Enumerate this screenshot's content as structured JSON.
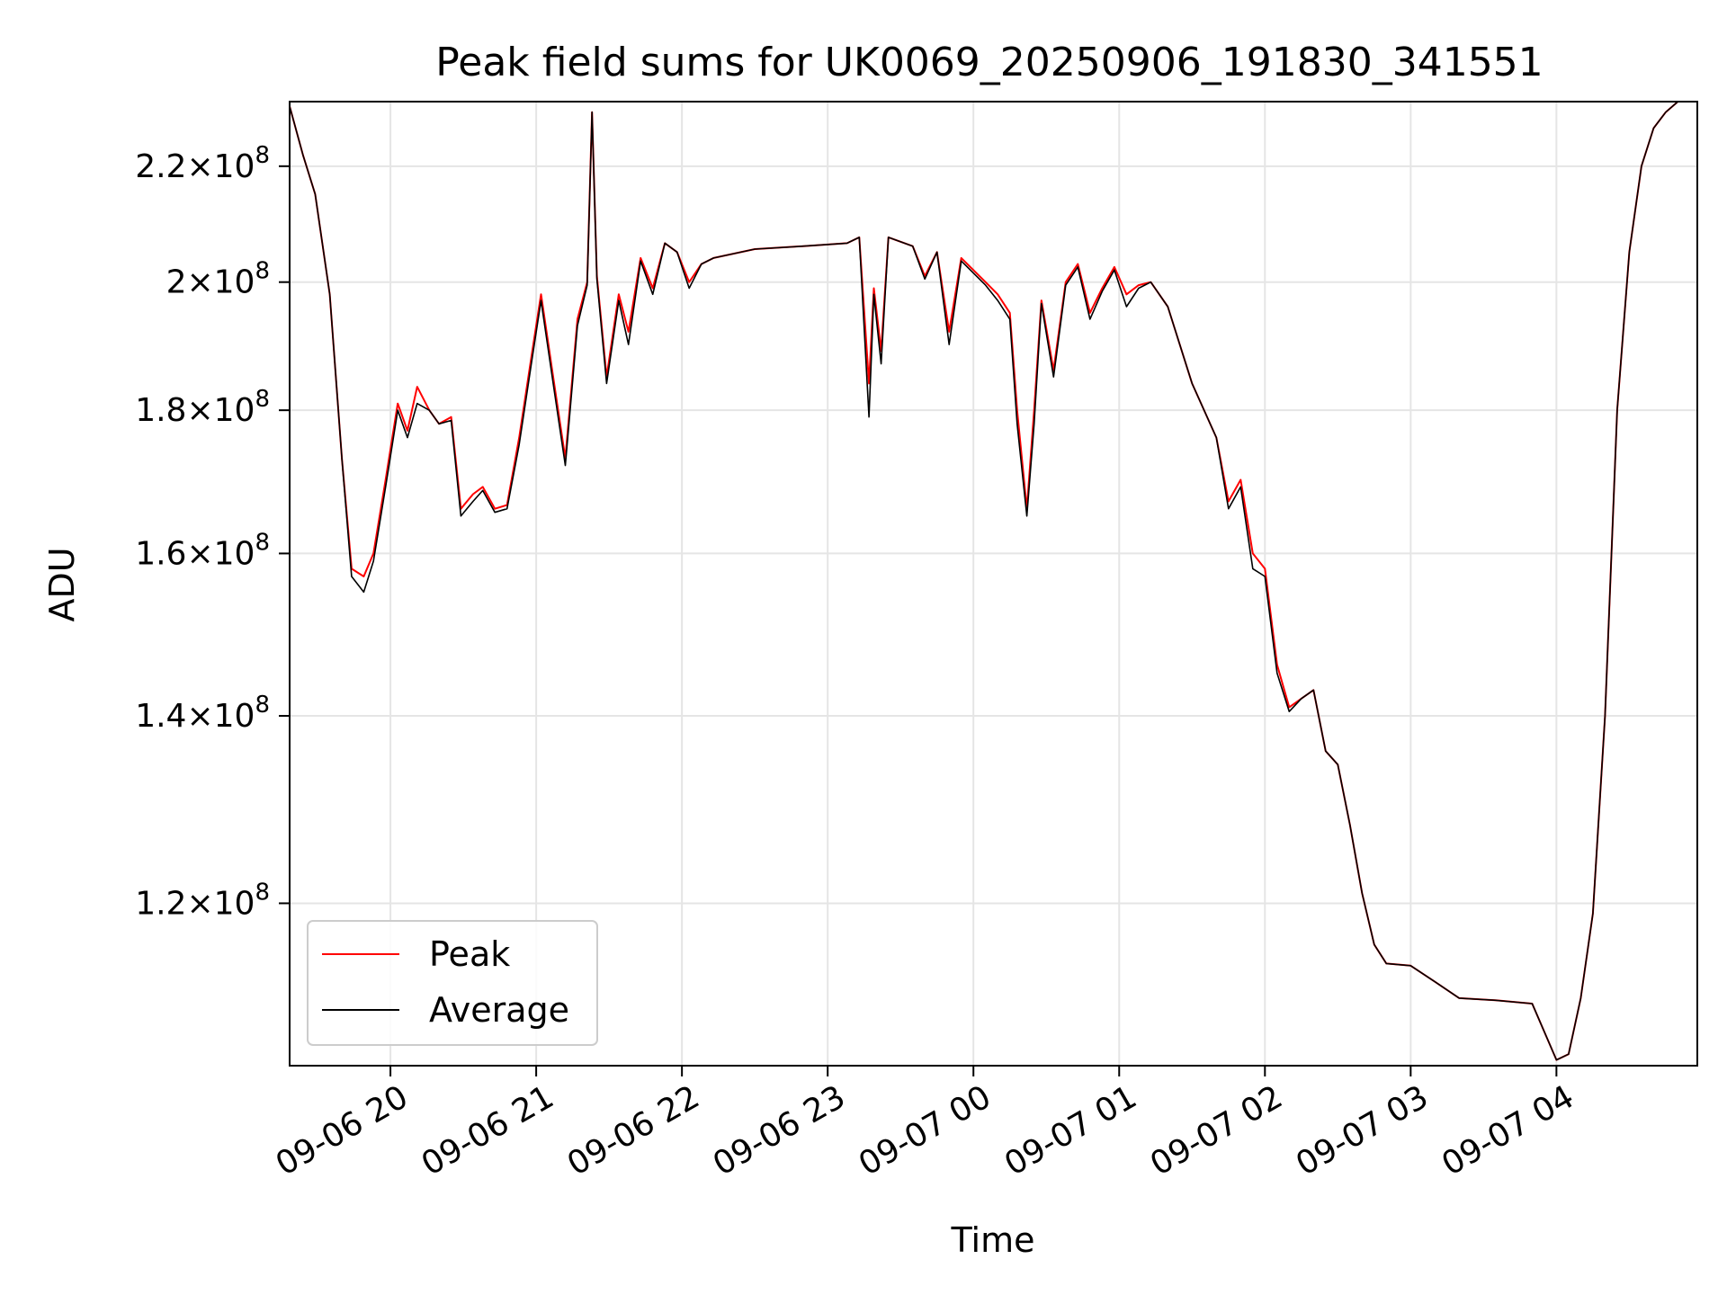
{
  "chart_data": {
    "type": "line",
    "title": "Peak field sums for UK0069_20250906_191830_341551",
    "xlabel": "Time",
    "ylabel": "ADU",
    "y_scale": "log",
    "ylim": [
      105000000,
      232000000
    ],
    "xlim": [
      "2025-09-06 19:18:30",
      "2025-09-07 04:58:00"
    ],
    "grid": true,
    "legend_position": "lower left",
    "x_ticks": [
      "09-06 20",
      "09-06 21",
      "09-06 22",
      "09-06 23",
      "09-07 00",
      "09-07 01",
      "09-07 02",
      "09-07 03",
      "09-07 04"
    ],
    "x_tick_times": [
      "2025-09-06 20:00",
      "2025-09-06 21:00",
      "2025-09-06 22:00",
      "2025-09-06 23:00",
      "2025-09-07 00:00",
      "2025-09-07 01:00",
      "2025-09-07 02:00",
      "2025-09-07 03:00",
      "2025-09-07 04:00"
    ],
    "y_ticks": [
      {
        "value": 120000000,
        "mantissa": "1.2",
        "exponent": "8"
      },
      {
        "value": 140000000,
        "mantissa": "1.4",
        "exponent": "8"
      },
      {
        "value": 160000000,
        "mantissa": "1.6",
        "exponent": "8"
      },
      {
        "value": 180000000,
        "mantissa": "1.8",
        "exponent": "8"
      },
      {
        "value": 200000000,
        "mantissa": "2",
        "exponent": "8"
      },
      {
        "value": 220000000,
        "mantissa": "2.2",
        "exponent": "8"
      }
    ],
    "series": [
      {
        "name": "Peak",
        "color": "#ff0000",
        "points": [
          [
            "2025-09-06 19:18",
            232000000
          ],
          [
            "2025-09-06 19:24",
            222000000
          ],
          [
            "2025-09-06 19:29",
            215000000
          ],
          [
            "2025-09-06 19:35",
            198000000
          ],
          [
            "2025-09-06 19:40",
            173000000
          ],
          [
            "2025-09-06 19:44",
            158000000
          ],
          [
            "2025-09-06 19:49",
            157000000
          ],
          [
            "2025-09-06 19:53",
            160000000
          ],
          [
            "2025-09-06 19:58",
            170000000
          ],
          [
            "2025-09-06 20:03",
            181000000
          ],
          [
            "2025-09-06 20:07",
            177000000
          ],
          [
            "2025-09-06 20:11",
            183500000
          ],
          [
            "2025-09-06 20:16",
            180000000
          ],
          [
            "2025-09-06 20:20",
            178000000
          ],
          [
            "2025-09-06 20:25",
            179000000
          ],
          [
            "2025-09-06 20:29",
            166000000
          ],
          [
            "2025-09-06 20:34",
            168000000
          ],
          [
            "2025-09-06 20:38",
            169000000
          ],
          [
            "2025-09-06 20:43",
            166000000
          ],
          [
            "2025-09-06 20:48",
            166500000
          ],
          [
            "2025-09-06 20:53",
            176000000
          ],
          [
            "2025-09-06 20:58",
            188000000
          ],
          [
            "2025-09-06 21:02",
            198000000
          ],
          [
            "2025-09-06 21:07",
            185000000
          ],
          [
            "2025-09-06 21:12",
            173000000
          ],
          [
            "2025-09-06 21:17",
            194000000
          ],
          [
            "2025-09-06 21:21",
            200000000
          ],
          [
            "2025-09-06 21:23",
            230000000
          ],
          [
            "2025-09-06 21:25",
            201000000
          ],
          [
            "2025-09-06 21:29",
            185000000
          ],
          [
            "2025-09-06 21:34",
            198000000
          ],
          [
            "2025-09-06 21:38",
            192000000
          ],
          [
            "2025-09-06 21:43",
            204000000
          ],
          [
            "2025-09-06 21:48",
            199000000
          ],
          [
            "2025-09-06 21:53",
            206500000
          ],
          [
            "2025-09-06 21:58",
            205000000
          ],
          [
            "2025-09-06 22:03",
            200000000
          ],
          [
            "2025-09-06 22:08",
            203000000
          ],
          [
            "2025-09-06 22:13",
            204000000
          ],
          [
            "2025-09-06 22:30",
            205500000
          ],
          [
            "2025-09-06 22:50",
            206000000
          ],
          [
            "2025-09-06 23:08",
            206500000
          ],
          [
            "2025-09-06 23:13",
            207500000
          ],
          [
            "2025-09-06 23:17",
            184000000
          ],
          [
            "2025-09-06 23:19",
            199000000
          ],
          [
            "2025-09-06 23:22",
            189000000
          ],
          [
            "2025-09-06 23:25",
            207500000
          ],
          [
            "2025-09-06 23:35",
            206000000
          ],
          [
            "2025-09-06 23:40",
            201000000
          ],
          [
            "2025-09-06 23:45",
            205000000
          ],
          [
            "2025-09-06 23:50",
            192000000
          ],
          [
            "2025-09-06 23:55",
            204000000
          ],
          [
            "2025-09-07 00:05",
            200000000
          ],
          [
            "2025-09-07 00:10",
            198000000
          ],
          [
            "2025-09-07 00:15",
            195000000
          ],
          [
            "2025-09-07 00:18",
            180000000
          ],
          [
            "2025-09-07 00:22",
            166000000
          ],
          [
            "2025-09-07 00:25",
            180000000
          ],
          [
            "2025-09-07 00:28",
            197000000
          ],
          [
            "2025-09-07 00:33",
            186000000
          ],
          [
            "2025-09-07 00:38",
            200000000
          ],
          [
            "2025-09-07 00:43",
            203000000
          ],
          [
            "2025-09-07 00:48",
            195000000
          ],
          [
            "2025-09-07 00:53",
            199000000
          ],
          [
            "2025-09-07 00:58",
            202500000
          ],
          [
            "2025-09-07 01:03",
            198000000
          ],
          [
            "2025-09-07 01:08",
            199500000
          ],
          [
            "2025-09-07 01:13",
            200000000
          ],
          [
            "2025-09-07 01:20",
            196000000
          ],
          [
            "2025-09-07 01:30",
            184000000
          ],
          [
            "2025-09-07 01:40",
            176000000
          ],
          [
            "2025-09-07 01:45",
            167000000
          ],
          [
            "2025-09-07 01:50",
            170000000
          ],
          [
            "2025-09-07 01:55",
            160000000
          ],
          [
            "2025-09-07 02:00",
            158000000
          ],
          [
            "2025-09-07 02:05",
            146000000
          ],
          [
            "2025-09-07 02:10",
            141000000
          ],
          [
            "2025-09-07 02:15",
            142000000
          ],
          [
            "2025-09-07 02:20",
            143000000
          ],
          [
            "2025-09-07 02:25",
            136000000
          ],
          [
            "2025-09-07 02:30",
            134500000
          ],
          [
            "2025-09-07 02:35",
            128000000
          ],
          [
            "2025-09-07 02:40",
            121000000
          ],
          [
            "2025-09-07 02:45",
            116000000
          ],
          [
            "2025-09-07 02:50",
            114200000
          ],
          [
            "2025-09-07 03:00",
            114000000
          ],
          [
            "2025-09-07 03:10",
            112500000
          ],
          [
            "2025-09-07 03:20",
            111000000
          ],
          [
            "2025-09-07 03:35",
            110800000
          ],
          [
            "2025-09-07 03:50",
            110500000
          ],
          [
            "2025-09-07 04:00",
            105500000
          ],
          [
            "2025-09-07 04:05",
            106000000
          ],
          [
            "2025-09-07 04:10",
            111000000
          ],
          [
            "2025-09-07 04:15",
            119000000
          ],
          [
            "2025-09-07 04:20",
            140000000
          ],
          [
            "2025-09-07 04:25",
            180000000
          ],
          [
            "2025-09-07 04:30",
            205000000
          ],
          [
            "2025-09-07 04:35",
            220000000
          ],
          [
            "2025-09-07 04:40",
            227000000
          ],
          [
            "2025-09-07 04:45",
            230000000
          ],
          [
            "2025-09-07 04:50",
            232000000
          ],
          [
            "2025-09-07 04:58",
            232000000
          ]
        ]
      },
      {
        "name": "Average",
        "color": "#000000",
        "points": [
          [
            "2025-09-06 19:18",
            232000000
          ],
          [
            "2025-09-06 19:24",
            222000000
          ],
          [
            "2025-09-06 19:29",
            215000000
          ],
          [
            "2025-09-06 19:35",
            198000000
          ],
          [
            "2025-09-06 19:40",
            173000000
          ],
          [
            "2025-09-06 19:44",
            157000000
          ],
          [
            "2025-09-06 19:49",
            155000000
          ],
          [
            "2025-09-06 19:53",
            159000000
          ],
          [
            "2025-09-06 19:58",
            169000000
          ],
          [
            "2025-09-06 20:03",
            180000000
          ],
          [
            "2025-09-06 20:07",
            176000000
          ],
          [
            "2025-09-06 20:11",
            181000000
          ],
          [
            "2025-09-06 20:16",
            180000000
          ],
          [
            "2025-09-06 20:20",
            178000000
          ],
          [
            "2025-09-06 20:25",
            178500000
          ],
          [
            "2025-09-06 20:29",
            165000000
          ],
          [
            "2025-09-06 20:34",
            167000000
          ],
          [
            "2025-09-06 20:38",
            168500000
          ],
          [
            "2025-09-06 20:43",
            165500000
          ],
          [
            "2025-09-06 20:48",
            166000000
          ],
          [
            "2025-09-06 20:53",
            175000000
          ],
          [
            "2025-09-06 20:58",
            187000000
          ],
          [
            "2025-09-06 21:02",
            197000000
          ],
          [
            "2025-09-06 21:07",
            184000000
          ],
          [
            "2025-09-06 21:12",
            172000000
          ],
          [
            "2025-09-06 21:17",
            193000000
          ],
          [
            "2025-09-06 21:21",
            199500000
          ],
          [
            "2025-09-06 21:23",
            230000000
          ],
          [
            "2025-09-06 21:25",
            200500000
          ],
          [
            "2025-09-06 21:29",
            184000000
          ],
          [
            "2025-09-06 21:34",
            197000000
          ],
          [
            "2025-09-06 21:38",
            190000000
          ],
          [
            "2025-09-06 21:43",
            203500000
          ],
          [
            "2025-09-06 21:48",
            198000000
          ],
          [
            "2025-09-06 21:53",
            206500000
          ],
          [
            "2025-09-06 21:58",
            205000000
          ],
          [
            "2025-09-06 22:03",
            199000000
          ],
          [
            "2025-09-06 22:08",
            203000000
          ],
          [
            "2025-09-06 22:13",
            204000000
          ],
          [
            "2025-09-06 22:30",
            205500000
          ],
          [
            "2025-09-06 22:50",
            206000000
          ],
          [
            "2025-09-06 23:08",
            206500000
          ],
          [
            "2025-09-06 23:13",
            207500000
          ],
          [
            "2025-09-06 23:17",
            179000000
          ],
          [
            "2025-09-06 23:19",
            198000000
          ],
          [
            "2025-09-06 23:22",
            187000000
          ],
          [
            "2025-09-06 23:25",
            207500000
          ],
          [
            "2025-09-06 23:35",
            206000000
          ],
          [
            "2025-09-06 23:40",
            200500000
          ],
          [
            "2025-09-06 23:45",
            205000000
          ],
          [
            "2025-09-06 23:50",
            190000000
          ],
          [
            "2025-09-06 23:55",
            203500000
          ],
          [
            "2025-09-07 00:05",
            199500000
          ],
          [
            "2025-09-07 00:10",
            197000000
          ],
          [
            "2025-09-07 00:15",
            194000000
          ],
          [
            "2025-09-07 00:18",
            178000000
          ],
          [
            "2025-09-07 00:22",
            165000000
          ],
          [
            "2025-09-07 00:25",
            178000000
          ],
          [
            "2025-09-07 00:28",
            196500000
          ],
          [
            "2025-09-07 00:33",
            185000000
          ],
          [
            "2025-09-07 00:38",
            199500000
          ],
          [
            "2025-09-07 00:43",
            202500000
          ],
          [
            "2025-09-07 00:48",
            194000000
          ],
          [
            "2025-09-07 00:53",
            198500000
          ],
          [
            "2025-09-07 00:58",
            202000000
          ],
          [
            "2025-09-07 01:03",
            196000000
          ],
          [
            "2025-09-07 01:08",
            199000000
          ],
          [
            "2025-09-07 01:13",
            200000000
          ],
          [
            "2025-09-07 01:20",
            196000000
          ],
          [
            "2025-09-07 01:30",
            184000000
          ],
          [
            "2025-09-07 01:40",
            176000000
          ],
          [
            "2025-09-07 01:45",
            166000000
          ],
          [
            "2025-09-07 01:50",
            169000000
          ],
          [
            "2025-09-07 01:55",
            158000000
          ],
          [
            "2025-09-07 02:00",
            157000000
          ],
          [
            "2025-09-07 02:05",
            145000000
          ],
          [
            "2025-09-07 02:10",
            140500000
          ],
          [
            "2025-09-07 02:15",
            142000000
          ],
          [
            "2025-09-07 02:20",
            143000000
          ],
          [
            "2025-09-07 02:25",
            136000000
          ],
          [
            "2025-09-07 02:30",
            134500000
          ],
          [
            "2025-09-07 02:35",
            128000000
          ],
          [
            "2025-09-07 02:40",
            121000000
          ],
          [
            "2025-09-07 02:45",
            116000000
          ],
          [
            "2025-09-07 02:50",
            114200000
          ],
          [
            "2025-09-07 03:00",
            114000000
          ],
          [
            "2025-09-07 03:10",
            112500000
          ],
          [
            "2025-09-07 03:20",
            111000000
          ],
          [
            "2025-09-07 03:35",
            110800000
          ],
          [
            "2025-09-07 03:50",
            110500000
          ],
          [
            "2025-09-07 04:00",
            105500000
          ],
          [
            "2025-09-07 04:05",
            106000000
          ],
          [
            "2025-09-07 04:10",
            111000000
          ],
          [
            "2025-09-07 04:15",
            119000000
          ],
          [
            "2025-09-07 04:20",
            140000000
          ],
          [
            "2025-09-07 04:25",
            180000000
          ],
          [
            "2025-09-07 04:30",
            205000000
          ],
          [
            "2025-09-07 04:35",
            220000000
          ],
          [
            "2025-09-07 04:40",
            227000000
          ],
          [
            "2025-09-07 04:45",
            230000000
          ],
          [
            "2025-09-07 04:50",
            232000000
          ],
          [
            "2025-09-07 04:58",
            232000000
          ]
        ]
      }
    ]
  }
}
